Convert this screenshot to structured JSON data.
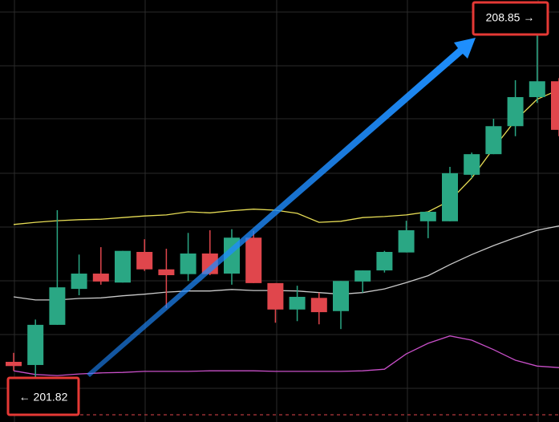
{
  "chart_data": {
    "type": "candlestick",
    "grid": true,
    "up_color": "#2aa784",
    "down_color": "#e0464c",
    "high_label": {
      "value": 208.85,
      "label": "208.85 →"
    },
    "low_label": {
      "value": 201.82,
      "label": "← 201.82"
    },
    "candles": {
      "open": [
        202.23,
        202.17,
        202.93,
        203.61,
        203.9,
        203.73,
        204.31,
        203.98,
        203.89,
        204.28,
        203.9,
        204.58,
        203.72,
        203.22,
        203.44,
        203.19,
        203.75,
        203.96,
        204.3,
        204.89,
        204.89,
        205.77,
        206.16,
        206.69,
        207.24,
        207.54
      ],
      "high": [
        202.4,
        203.03,
        205.1,
        204.26,
        204.4,
        204.33,
        204.55,
        204.37,
        204.67,
        204.72,
        204.74,
        204.71,
        203.72,
        203.67,
        203.54,
        203.76,
        203.96,
        204.33,
        204.9,
        205.05,
        205.92,
        206.19,
        206.83,
        207.56,
        208.85,
        207.6
      ],
      "low": [
        202.06,
        201.82,
        202.93,
        203.49,
        203.69,
        203.73,
        203.95,
        203.25,
        203.76,
        203.87,
        203.69,
        203.72,
        202.97,
        203.0,
        202.94,
        202.85,
        203.54,
        203.92,
        204.3,
        204.57,
        204.89,
        205.71,
        206.16,
        206.5,
        207.13,
        206.5
      ],
      "close": [
        202.15,
        202.93,
        203.64,
        203.9,
        203.75,
        204.33,
        203.98,
        203.87,
        204.28,
        203.89,
        204.58,
        203.72,
        203.22,
        203.46,
        203.17,
        203.76,
        203.96,
        204.31,
        204.72,
        205.07,
        205.8,
        206.16,
        206.69,
        207.24,
        207.54,
        206.62
      ]
    },
    "series": [
      {
        "color": "#e6dc55",
        "values": [
          204.83,
          204.87,
          204.9,
          204.92,
          204.93,
          204.96,
          204.99,
          205.01,
          205.07,
          205.05,
          205.09,
          205.12,
          205.1,
          205.04,
          204.87,
          204.89,
          204.96,
          204.98,
          205.01,
          205.07,
          205.28,
          205.71,
          206.27,
          206.8,
          207.2,
          207.38
        ]
      },
      {
        "color": "#c9c9c9",
        "values": [
          203.46,
          203.4,
          203.4,
          203.43,
          203.44,
          203.48,
          203.51,
          203.55,
          203.57,
          203.57,
          203.6,
          203.58,
          203.58,
          203.57,
          203.54,
          203.51,
          203.54,
          203.61,
          203.73,
          203.86,
          204.07,
          204.26,
          204.43,
          204.58,
          204.72,
          204.8
        ]
      },
      {
        "color": "#c84fc8",
        "values": [
          202.06,
          201.99,
          201.97,
          202.0,
          202.02,
          202.03,
          202.05,
          202.05,
          202.05,
          202.06,
          202.06,
          202.06,
          202.05,
          202.05,
          202.05,
          202.05,
          202.06,
          202.09,
          202.38,
          202.58,
          202.72,
          202.64,
          202.46,
          202.26,
          202.15,
          202.12
        ]
      }
    ]
  }
}
